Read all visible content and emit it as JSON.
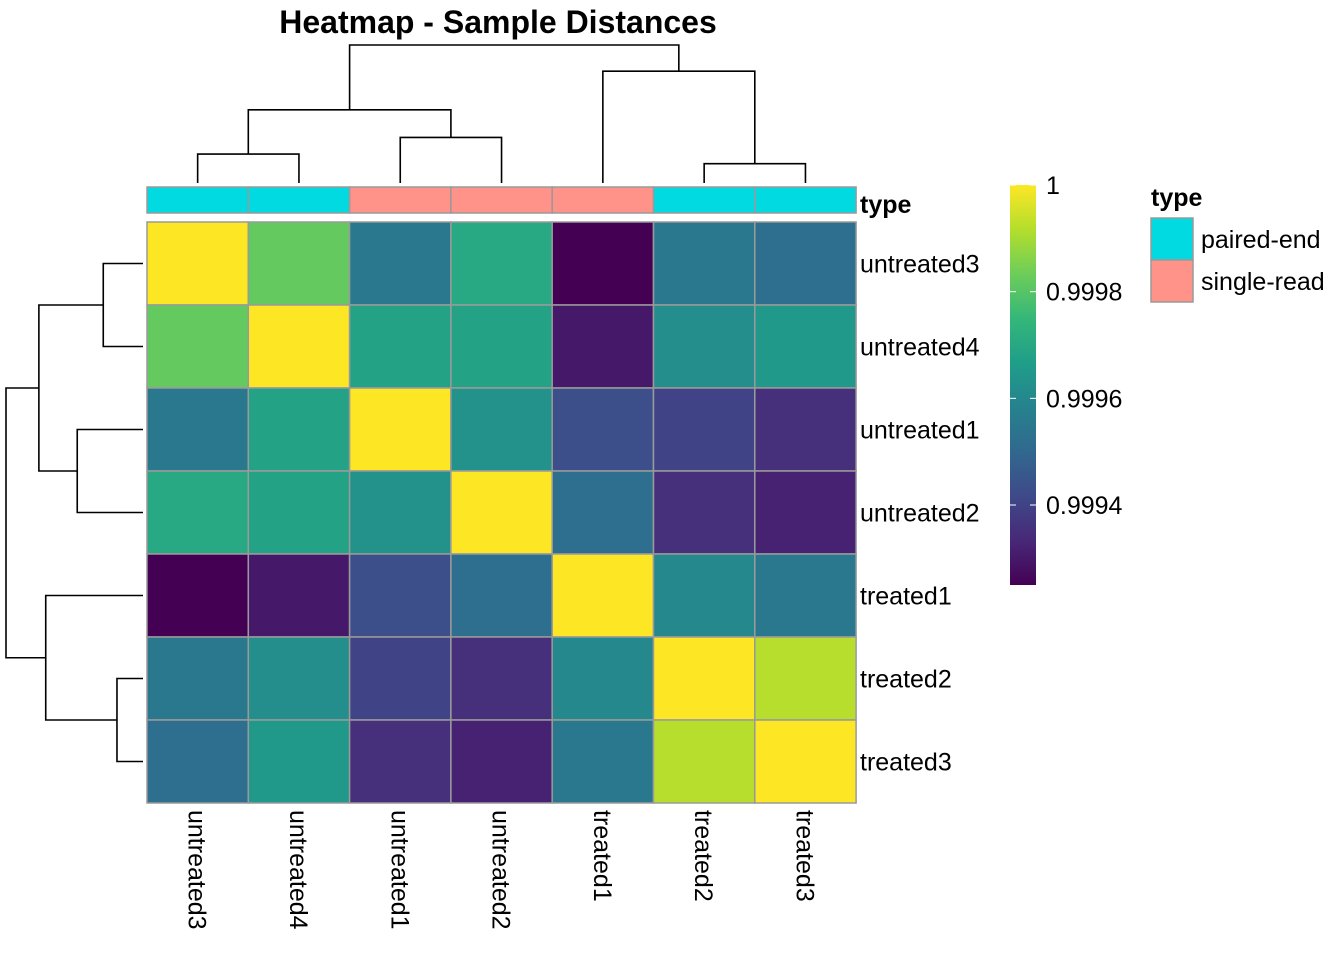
{
  "chart_data": {
    "type": "heatmap",
    "title": "Heatmap - Sample Distances",
    "rows": [
      "untreated3",
      "untreated4",
      "untreated1",
      "untreated2",
      "treated1",
      "treated2",
      "treated3"
    ],
    "columns": [
      "untreated3",
      "untreated4",
      "untreated1",
      "untreated2",
      "treated1",
      "treated2",
      "treated3"
    ],
    "values": [
      [
        1.0,
        0.99982,
        0.99955,
        0.9997,
        0.99925,
        0.99955,
        0.99952
      ],
      [
        0.99982,
        1.0,
        0.99968,
        0.99968,
        0.9993,
        0.99962,
        0.99965
      ],
      [
        0.99955,
        0.99968,
        1.0,
        0.99963,
        0.99943,
        0.9994,
        0.99935
      ],
      [
        0.9997,
        0.99968,
        0.99963,
        1.0,
        0.99952,
        0.99935,
        0.99932
      ],
      [
        0.99925,
        0.9993,
        0.99943,
        0.99952,
        1.0,
        0.9996,
        0.99955
      ],
      [
        0.99955,
        0.99962,
        0.9994,
        0.99935,
        0.9996,
        1.0,
        0.99992
      ],
      [
        0.99952,
        0.99965,
        0.99935,
        0.99932,
        0.99955,
        0.99992,
        1.0
      ]
    ],
    "color_scale": {
      "name": "viridis",
      "min": 0.99925,
      "max": 1.0,
      "ticks": [
        0.9994,
        0.9996,
        0.9998,
        1
      ],
      "tick_labels": [
        "0.9994",
        "0.9996",
        "0.9998",
        "1"
      ]
    },
    "column_annotation": {
      "title": "type",
      "values": [
        "paired-end",
        "paired-end",
        "single-read",
        "single-read",
        "single-read",
        "paired-end",
        "paired-end"
      ]
    },
    "annotation_legend": {
      "title": "type",
      "entries": [
        {
          "label": "paired-end",
          "color": "#00DAE0"
        },
        {
          "label": "single-read",
          "color": "#FF9289"
        }
      ]
    },
    "dendrograms": {
      "columns": [
        {
          "left": 0,
          "right": 1,
          "height": 0.21
        },
        {
          "left": 2,
          "right": 3,
          "height": 0.33
        },
        {
          "left": 5,
          "right": 6,
          "height": 0.14
        },
        {
          "left": "c0",
          "right": "c1",
          "height": 0.53
        },
        {
          "left": 4,
          "right": "c2",
          "height": 0.81
        },
        {
          "left": "c3",
          "right": "c4",
          "height": 1.0
        }
      ],
      "rows": [
        {
          "left": 0,
          "right": 1,
          "height": 0.29
        },
        {
          "left": 2,
          "right": 3,
          "height": 0.48
        },
        {
          "left": 5,
          "right": 6,
          "height": 0.19
        },
        {
          "left": "c0",
          "right": "c1",
          "height": 0.76
        },
        {
          "left": 4,
          "right": "c2",
          "height": 0.71
        },
        {
          "left": "c3",
          "right": "c4",
          "height": 1.0
        }
      ]
    }
  }
}
